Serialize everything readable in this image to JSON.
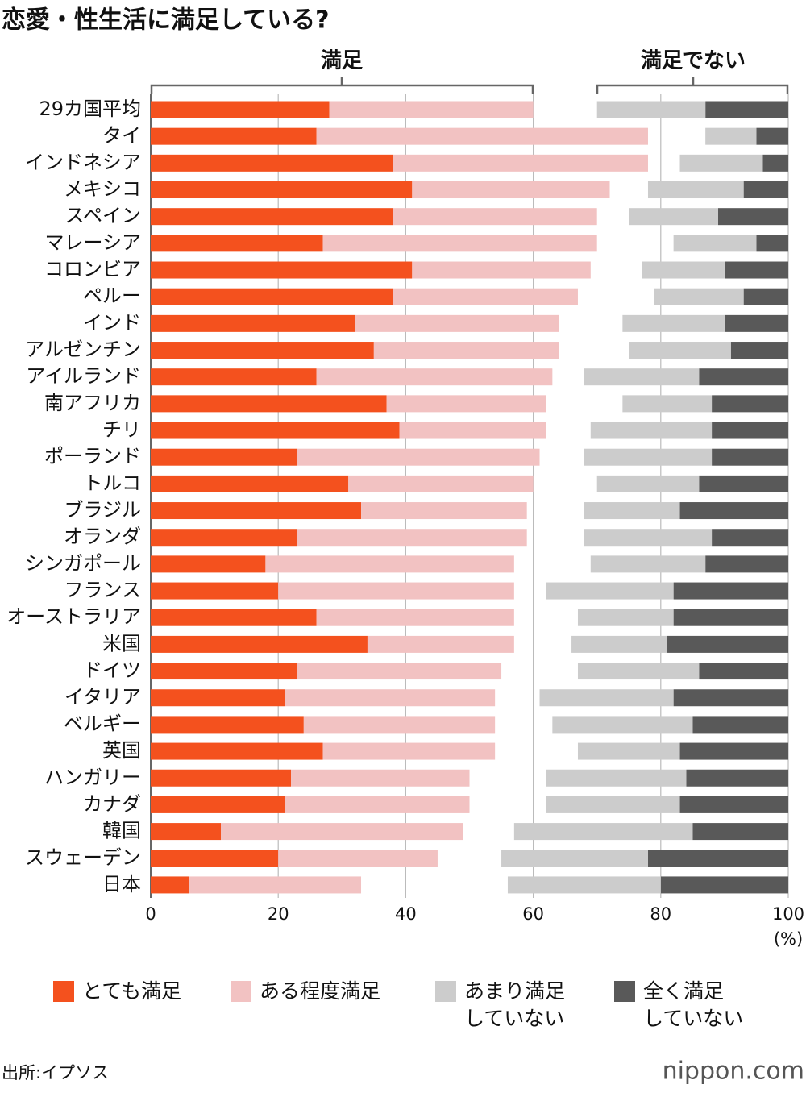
{
  "chart_data": {
    "type": "bar",
    "orientation": "horizontal",
    "title": "恋愛・性生活に満足している?",
    "annotations": [
      "満足",
      "満足でない"
    ],
    "unit": "(%)",
    "categories": [
      "29カ国平均",
      "タイ",
      "インドネシア",
      "メキシコ",
      "スペイン",
      "マレーシア",
      "コロンビア",
      "ペルー",
      "インド",
      "アルゼンチン",
      "アイルランド",
      "南アフリカ",
      "チリ",
      "ポーランド",
      "トルコ",
      "ブラジル",
      "オランダ",
      "シンガポール",
      "フランス",
      "オーストラリア",
      "米国",
      "ドイツ",
      "イタリア",
      "ベルギー",
      "英国",
      "ハンガリー",
      "カナダ",
      "韓国",
      "スウェーデン",
      "日本"
    ],
    "series": [
      {
        "name": "とても満足",
        "color": "#f4511e",
        "align": "left",
        "values": [
          28,
          26,
          38,
          41,
          38,
          27,
          41,
          38,
          32,
          35,
          26,
          37,
          39,
          23,
          31,
          33,
          23,
          18,
          20,
          26,
          34,
          23,
          21,
          24,
          27,
          22,
          21,
          11,
          20,
          6
        ]
      },
      {
        "name": "ある程度満足",
        "color": "#f2c2c2",
        "align": "left",
        "values": [
          32,
          52,
          40,
          31,
          32,
          43,
          28,
          29,
          32,
          29,
          37,
          25,
          23,
          38,
          29,
          26,
          36,
          39,
          37,
          31,
          23,
          32,
          33,
          30,
          27,
          28,
          29,
          38,
          25,
          27
        ]
      },
      {
        "name": "あまり満足\nしていない",
        "color": "#cccccc",
        "align": "right",
        "values": [
          17,
          8,
          13,
          15,
          14,
          13,
          13,
          14,
          16,
          16,
          18,
          14,
          19,
          20,
          16,
          15,
          20,
          18,
          20,
          15,
          15,
          19,
          21,
          22,
          16,
          22,
          21,
          28,
          23,
          24
        ]
      },
      {
        "name": "全く満足\nしていない",
        "color": "#595959",
        "align": "right",
        "values": [
          13,
          5,
          4,
          7,
          11,
          5,
          10,
          7,
          10,
          9,
          14,
          12,
          12,
          12,
          14,
          17,
          12,
          13,
          18,
          18,
          19,
          14,
          18,
          15,
          17,
          16,
          17,
          15,
          22,
          20
        ]
      }
    ],
    "xlim": [
      0,
      100
    ],
    "xticks": [
      0,
      20,
      40,
      60,
      80,
      100
    ],
    "grid": true,
    "source": "出所:イプソス",
    "logo": "nippon.com"
  }
}
